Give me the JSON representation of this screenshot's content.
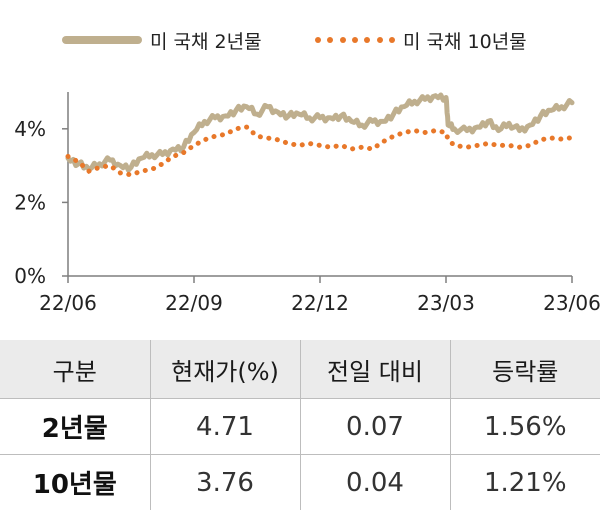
{
  "legend": {
    "series_2y": "미 국채 2년물",
    "series_10y": "미 국채 10년물"
  },
  "colors": {
    "series_2y": "#bfaf8e",
    "series_10y": "#e8782a",
    "axis": "#7f7f7f",
    "header_bg": "#ebebeb"
  },
  "chart_data": {
    "type": "line",
    "x_ticks": [
      "22/06",
      "22/09",
      "22/12",
      "23/03",
      "23/06"
    ],
    "y_ticks": [
      "0%",
      "2%",
      "4%"
    ],
    "ylim": [
      0,
      5
    ],
    "x_range": [
      0,
      12
    ],
    "grid": false,
    "legend_position": "top",
    "series": [
      {
        "name": "미 국채 2년물",
        "style": "solid-thick",
        "x": [
          0,
          0.25,
          0.5,
          0.75,
          1.0,
          1.25,
          1.5,
          1.75,
          2.0,
          2.25,
          2.5,
          2.75,
          3.0,
          3.25,
          3.5,
          3.75,
          4.0,
          4.25,
          4.5,
          4.75,
          5.0,
          5.25,
          5.5,
          5.75,
          6.0,
          6.25,
          6.5,
          6.75,
          7.0,
          7.25,
          7.5,
          7.75,
          8.0,
          8.25,
          8.5,
          8.75,
          9.0,
          9.05,
          9.2,
          9.5,
          9.75,
          10.0,
          10.25,
          10.5,
          10.75,
          11.0,
          11.25,
          11.5,
          11.75,
          12.0
        ],
        "values": [
          3.2,
          3.05,
          2.9,
          3.05,
          3.15,
          3.0,
          2.95,
          3.2,
          3.3,
          3.3,
          3.45,
          3.5,
          3.9,
          4.2,
          4.3,
          4.35,
          4.5,
          4.6,
          4.4,
          4.6,
          4.45,
          4.35,
          4.4,
          4.3,
          4.3,
          4.3,
          4.35,
          4.2,
          4.1,
          4.2,
          4.2,
          4.4,
          4.6,
          4.75,
          4.8,
          4.9,
          4.85,
          4.1,
          4.0,
          3.95,
          4.05,
          4.2,
          3.95,
          4.15,
          3.95,
          4.1,
          4.35,
          4.5,
          4.6,
          4.71
        ]
      },
      {
        "name": "미 국채 10년물",
        "style": "dotted",
        "x": [
          0,
          0.25,
          0.5,
          0.75,
          1.0,
          1.25,
          1.5,
          1.75,
          2.0,
          2.25,
          2.5,
          2.75,
          3.0,
          3.25,
          3.5,
          3.75,
          4.0,
          4.25,
          4.5,
          4.75,
          5.0,
          5.25,
          5.5,
          5.75,
          6.0,
          6.25,
          6.5,
          6.75,
          7.0,
          7.25,
          7.5,
          7.75,
          8.0,
          8.25,
          8.5,
          8.75,
          9.0,
          9.05,
          9.2,
          9.5,
          9.75,
          10.0,
          10.25,
          10.5,
          10.75,
          11.0,
          11.25,
          11.5,
          11.75,
          12.0
        ],
        "values": [
          3.25,
          3.1,
          2.85,
          2.95,
          3.0,
          2.8,
          2.75,
          2.85,
          2.9,
          3.05,
          3.25,
          3.35,
          3.55,
          3.7,
          3.8,
          3.85,
          4.0,
          4.05,
          3.8,
          3.75,
          3.7,
          3.6,
          3.55,
          3.6,
          3.55,
          3.5,
          3.55,
          3.45,
          3.5,
          3.45,
          3.65,
          3.8,
          3.9,
          3.95,
          3.9,
          3.95,
          3.9,
          3.7,
          3.55,
          3.5,
          3.55,
          3.6,
          3.55,
          3.55,
          3.5,
          3.55,
          3.7,
          3.75,
          3.72,
          3.76
        ]
      }
    ]
  },
  "table": {
    "headers": [
      "구분",
      "현재가(%)",
      "전일 대비",
      "등락률"
    ],
    "rows": [
      [
        "2년물",
        "4.71",
        "0.07",
        "1.56%"
      ],
      [
        "10년물",
        "3.76",
        "0.04",
        "1.21%"
      ]
    ]
  }
}
